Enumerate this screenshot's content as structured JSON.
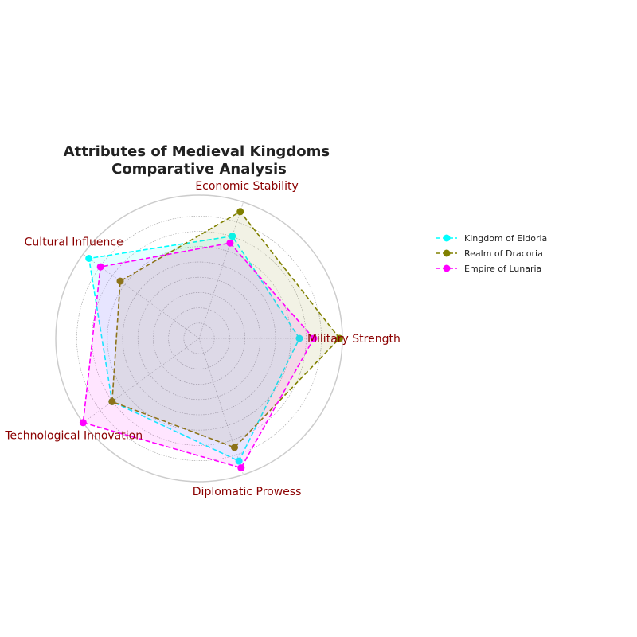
{
  "chart_data": {
    "type": "radar",
    "title": "Attributes of Medieval Kingdoms\nComparative Analysis",
    "axes": [
      "Military Strength",
      "Economic Stability",
      "Cultural Influence",
      "Technological Innovation",
      "Diplomatic Prowess"
    ],
    "rlim": [
      0,
      10
    ],
    "grid": true,
    "legend_position": "right",
    "series": [
      {
        "name": "Kingdom of Eldoria",
        "values": [
          7,
          7.5,
          9.5,
          7.5,
          9
        ],
        "color": "#00ffff"
      },
      {
        "name": "Realm of Dracoria",
        "values": [
          9.8,
          9.3,
          6.8,
          7.5,
          8
        ],
        "color": "#808000"
      },
      {
        "name": "Empire of Lunaria",
        "values": [
          8,
          7,
          8.5,
          10,
          9.5
        ],
        "color": "#ff00ff"
      }
    ]
  }
}
